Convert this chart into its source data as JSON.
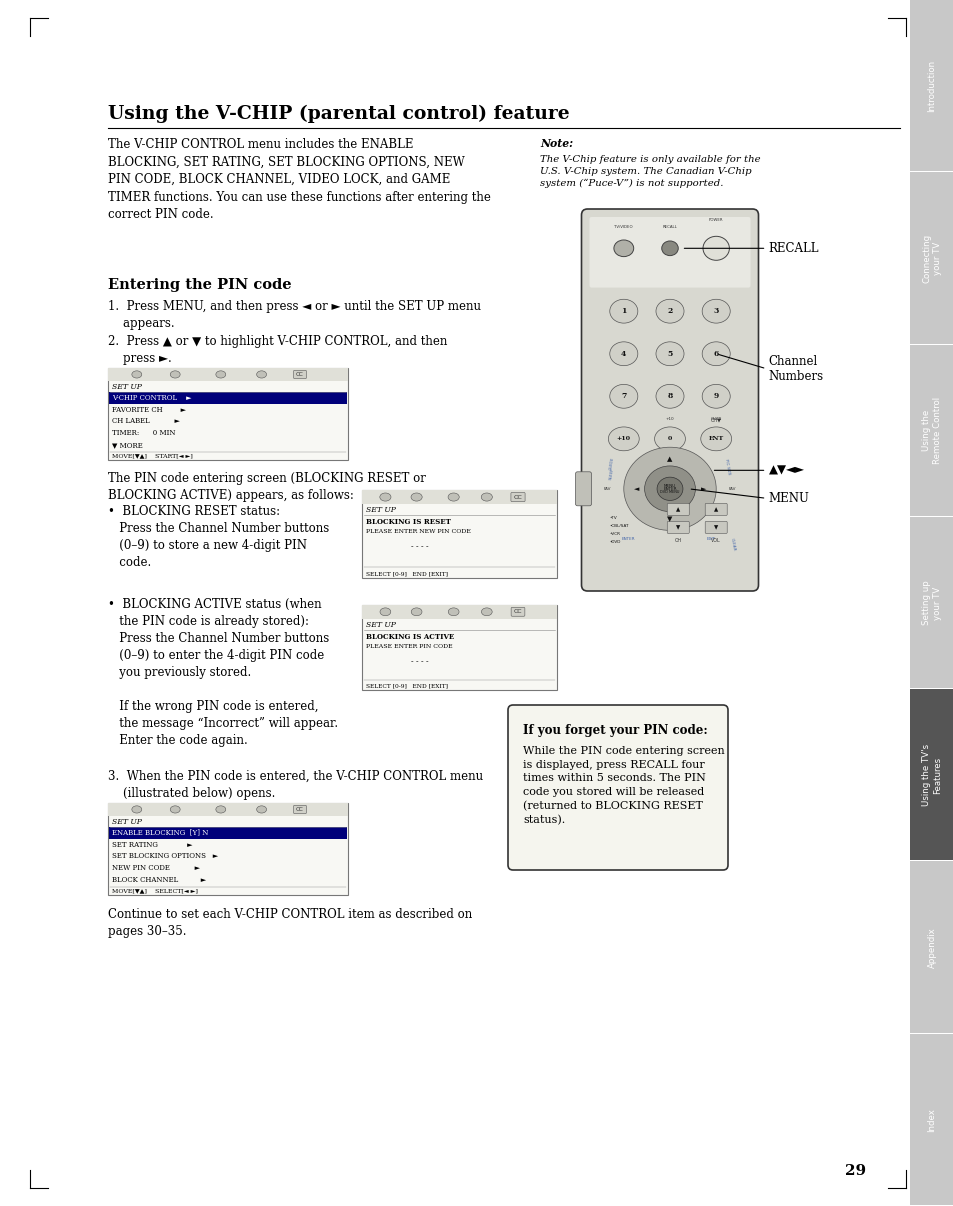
{
  "page_bg": "#ffffff",
  "title": "Using the V-CHIP (parental control) feature",
  "title_fontsize": 13.5,
  "body_text_1": "The V-CHIP CONTROL menu includes the ENABLE\nBLOCKING, SET RATING, SET BLOCKING OPTIONS, NEW\nPIN CODE, BLOCK CHANNEL, VIDEO LOCK, and GAME\nTIMER functions. You can use these functions after entering the\ncorrect PIN code.",
  "body_fontsize": 8.5,
  "note_label": "Note:",
  "note_text": "The V-Chip feature is only available for the\nU.S. V-Chip system. The Canadian V-Chip\nsystem (“Puce-V”) is not supported.",
  "note_fontsize": 7.8,
  "subheading_1": "Entering the PIN code",
  "subheading_fontsize": 10.5,
  "step_fontsize": 8.5,
  "step1_text": "1.  Press MENU, and then press ◄ or ► until the SET UP menu\n    appears.",
  "step2_text": "2.  Press ▲ or ▼ to highlight V-CHIP CONTROL, and then\n    press ►.",
  "middle_text_1": "The PIN code entering screen (BLOCKING RESET or\nBLOCKING ACTIVE) appears, as follows:",
  "bullet1_text": "•  BLOCKING RESET status:\n   Press the Channel Number buttons\n   (0–9) to store a new 4-digit PIN\n   code.",
  "bullet2_text": "•  BLOCKING ACTIVE status (when\n   the PIN code is already stored):\n   Press the Channel Number buttons\n   (0–9) to enter the 4-digit PIN code\n   you previously stored.\n\n   If the wrong PIN code is entered,\n   the message “Incorrect” will appear.\n   Enter the code again.",
  "step3_text": "3.  When the PIN code is entered, the V-CHIP CONTROL menu\n    (illustrated below) opens.",
  "continue_text": "Continue to set each V-CHIP CONTROL item as described on\npages 30–35.",
  "sidebar_labels": [
    "Introduction",
    "Connecting\nyour TV",
    "Using the\nRemote Control",
    "Setting up\nyour TV",
    "Using the TV's\nFeatures",
    "Appendix",
    "Index"
  ],
  "sidebar_active": 4,
  "sidebar_bg": "#c8c8c8",
  "sidebar_active_bg": "#555555",
  "sidebar_text_color": "#ffffff",
  "page_number": "29",
  "screen_bg": "#f8f8f4",
  "screen_selected_bg": "#00007a",
  "screen_selected_text": "#ffffff",
  "screen_normal_text": "#000000",
  "forget_title": "If you forget your PIN code:",
  "forget_text": "While the PIN code entering screen\nis displayed, press RECALL four\ntimes within 5 seconds. The PIN\ncode you stored will be released\n(returned to BLOCKING RESET\nstatus).",
  "remote_label_recall": "RECALL",
  "remote_label_channel": "Channel\nNumbers",
  "remote_label_arrows": "▲▼◄►",
  "remote_label_menu": "MENU"
}
